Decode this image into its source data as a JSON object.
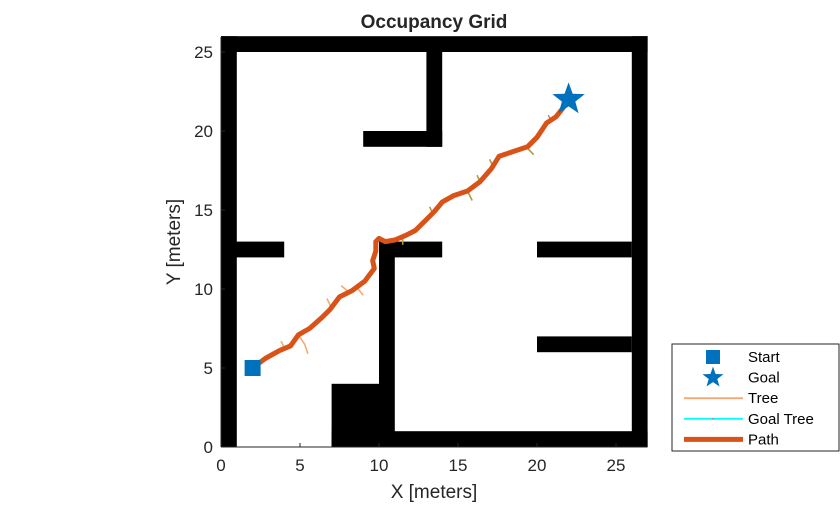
{
  "chart_data": {
    "type": "occupancy-grid-path",
    "title": "Occupancy Grid",
    "xlabel": "X [meters]",
    "ylabel": "Y [meters]",
    "xlim": [
      0,
      27
    ],
    "ylim": [
      0,
      26
    ],
    "xticks": [
      0,
      5,
      10,
      15,
      20,
      25
    ],
    "yticks": [
      0,
      5,
      10,
      15,
      20,
      25
    ],
    "grid": false,
    "legend_position": "outside-southeast",
    "obstacles": [
      {
        "x": 0,
        "y": 0,
        "w": 1,
        "h": 26
      },
      {
        "x": 0,
        "y": 25,
        "w": 27,
        "h": 1
      },
      {
        "x": 26,
        "y": 0,
        "w": 1,
        "h": 26
      },
      {
        "x": 7,
        "y": 0,
        "w": 20,
        "h": 1
      },
      {
        "x": 7,
        "y": 0,
        "w": 3,
        "h": 4
      },
      {
        "x": 10,
        "y": 0,
        "w": 1,
        "h": 13
      },
      {
        "x": 10,
        "y": 12,
        "w": 4,
        "h": 1
      },
      {
        "x": 0,
        "y": 12,
        "w": 4,
        "h": 1
      },
      {
        "x": 20,
        "y": 12,
        "w": 6,
        "h": 1
      },
      {
        "x": 20,
        "y": 6,
        "w": 6,
        "h": 1
      },
      {
        "x": 13,
        "y": 19,
        "w": 1,
        "h": 6
      },
      {
        "x": 9,
        "y": 19,
        "w": 5,
        "h": 1
      }
    ],
    "start": {
      "x": 2,
      "y": 5
    },
    "goal": {
      "x": 22,
      "y": 22
    },
    "path": [
      [
        2.0,
        5.0
      ],
      [
        2.8,
        5.6
      ],
      [
        3.7,
        6.1
      ],
      [
        4.4,
        6.4
      ],
      [
        4.9,
        7.1
      ],
      [
        5.6,
        7.5
      ],
      [
        6.4,
        8.2
      ],
      [
        6.9,
        8.7
      ],
      [
        7.5,
        9.5
      ],
      [
        8.3,
        9.9
      ],
      [
        9.1,
        10.5
      ],
      [
        9.7,
        11.3
      ],
      [
        9.6,
        11.8
      ],
      [
        9.8,
        12.4
      ],
      [
        9.8,
        13.0
      ],
      [
        10.0,
        13.2
      ],
      [
        10.4,
        13.0
      ],
      [
        11.0,
        13.1
      ],
      [
        11.7,
        13.4
      ],
      [
        12.3,
        13.7
      ],
      [
        12.9,
        14.3
      ],
      [
        13.5,
        14.9
      ],
      [
        14.0,
        15.5
      ],
      [
        14.7,
        15.9
      ],
      [
        15.6,
        16.2
      ],
      [
        16.4,
        16.8
      ],
      [
        17.1,
        17.6
      ],
      [
        17.6,
        18.4
      ],
      [
        18.5,
        18.7
      ],
      [
        19.4,
        19.0
      ],
      [
        20.0,
        19.6
      ],
      [
        20.6,
        20.5
      ],
      [
        21.2,
        20.9
      ],
      [
        21.6,
        21.4
      ],
      [
        22.0,
        22.0
      ]
    ],
    "tree_branches": [
      [
        [
          2.0,
          5.0
        ],
        [
          2.2,
          4.6
        ]
      ],
      [
        [
          4.9,
          7.1
        ],
        [
          5.3,
          6.5
        ],
        [
          5.5,
          5.9
        ]
      ],
      [
        [
          4.0,
          6.3
        ],
        [
          3.8,
          6.7
        ]
      ],
      [
        [
          7.0,
          8.8
        ],
        [
          6.7,
          9.4
        ]
      ],
      [
        [
          8.6,
          10.1
        ],
        [
          9.0,
          9.6
        ]
      ],
      [
        [
          8.0,
          9.9
        ],
        [
          7.6,
          10.2
        ]
      ]
    ],
    "goal_tree_branches": [
      [
        [
          11.5,
          13.3
        ],
        [
          11.5,
          12.8
        ]
      ],
      [
        [
          13.4,
          14.8
        ],
        [
          13.2,
          15.2
        ]
      ],
      [
        [
          15.6,
          16.2
        ],
        [
          15.9,
          15.6
        ]
      ],
      [
        [
          16.4,
          16.8
        ],
        [
          16.2,
          17.2
        ]
      ],
      [
        [
          17.2,
          17.8
        ],
        [
          17.0,
          18.2
        ]
      ],
      [
        [
          19.3,
          19.0
        ],
        [
          19.8,
          18.5
        ]
      ],
      [
        [
          20.9,
          20.7
        ],
        [
          20.7,
          21.0
        ]
      ]
    ],
    "colors": {
      "obstacle": "#000000",
      "start": "#0072BD",
      "goal": "#0072BD",
      "tree": "#F7A872",
      "goal_tree": "#00FFFF",
      "goal_tree_branch_render": "#A8A040",
      "path": "#D95319"
    },
    "legend": [
      {
        "label": "Start",
        "marker": "square",
        "color": "#0072BD"
      },
      {
        "label": "Goal",
        "marker": "star",
        "color": "#0072BD"
      },
      {
        "label": "Tree",
        "marker": "line",
        "color": "#F7A872"
      },
      {
        "label": "Goal Tree",
        "marker": "line",
        "color": "#00FFFF"
      },
      {
        "label": "Path",
        "marker": "thick-line",
        "color": "#D95319"
      }
    ]
  }
}
